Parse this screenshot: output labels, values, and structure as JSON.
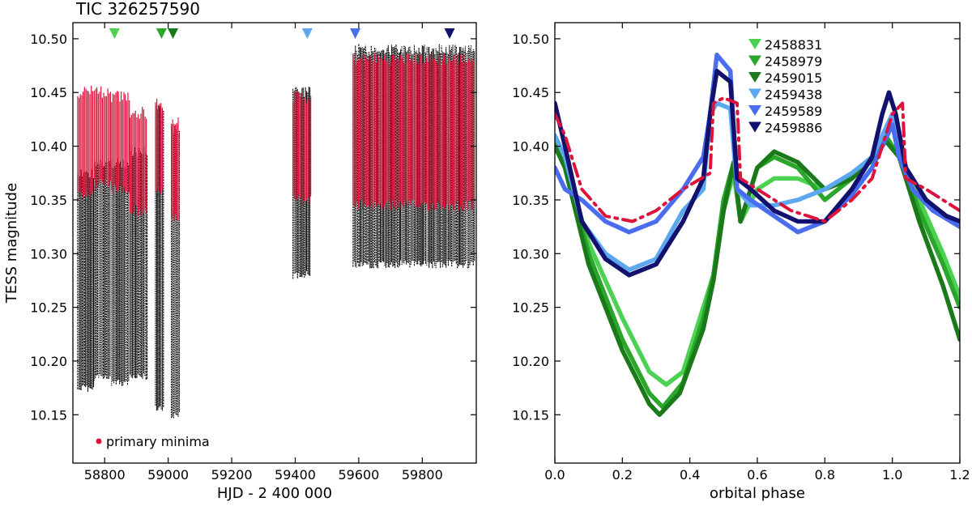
{
  "chart_data": [
    {
      "type": "scatter",
      "title": "TIC 326257590",
      "xlabel": "HJD - 2 400 000",
      "ylabel": "TESS magnitude",
      "xlim": [
        58700,
        59970
      ],
      "ylim": [
        10.515,
        10.105
      ],
      "y_inverted": true,
      "xticks": [
        58800,
        59000,
        59200,
        59400,
        59600,
        59800
      ],
      "yticks": [
        10.15,
        10.2,
        10.25,
        10.3,
        10.35,
        10.4,
        10.45,
        10.5
      ],
      "xtick_labels": [
        "58800",
        "59000",
        "59200",
        "59400",
        "59600",
        "59800"
      ],
      "ytick_labels": [
        "10.15",
        "10.20",
        "10.25",
        "10.30",
        "10.35",
        "10.40",
        "10.45",
        "10.50"
      ],
      "colors": {
        "all_data": "#000000",
        "primary_minima": "#dc143c"
      },
      "legend": {
        "placement": "bottom-left",
        "label": "primary minima"
      },
      "sectors": [
        {
          "x_range": [
            58715,
            58765
          ],
          "y_range": [
            10.175,
            10.375
          ],
          "minima_y_range": [
            10.355,
            10.445
          ]
        },
        {
          "x_range": [
            58767,
            58820
          ],
          "y_range": [
            10.185,
            10.385
          ],
          "minima_y_range": [
            10.365,
            10.445
          ]
        },
        {
          "x_range": [
            58822,
            58878
          ],
          "y_range": [
            10.18,
            10.385
          ],
          "minima_y_range": [
            10.36,
            10.44
          ]
        },
        {
          "x_range": [
            58880,
            58935
          ],
          "y_range": [
            10.185,
            10.395
          ],
          "minima_y_range": [
            10.34,
            10.425
          ]
        },
        {
          "x_range": [
            58960,
            58985
          ],
          "y_range": [
            10.155,
            10.435
          ],
          "minima_y_range": [
            10.355,
            10.435
          ]
        },
        {
          "x_range": [
            59010,
            59035
          ],
          "y_range": [
            10.15,
            10.415
          ],
          "minima_y_range": [
            10.335,
            10.415
          ]
        },
        {
          "x_range": [
            59393,
            59450
          ],
          "y_range": [
            10.28,
            10.45
          ],
          "minima_y_range": [
            10.35,
            10.44
          ]
        },
        {
          "x_range": [
            59582,
            59965
          ],
          "y_range": [
            10.29,
            10.49
          ],
          "minima_y_range": [
            10.345,
            10.475
          ]
        }
      ],
      "epoch_markers": [
        {
          "x": 58831,
          "color": "#4cd152"
        },
        {
          "x": 58979,
          "color": "#2aa62a"
        },
        {
          "x": 59015,
          "color": "#1a7a1a"
        },
        {
          "x": 59438,
          "color": "#5ca8f0"
        },
        {
          "x": 59589,
          "color": "#4a6df0"
        },
        {
          "x": 59886,
          "color": "#12126e"
        }
      ]
    },
    {
      "type": "line",
      "xlabel": "orbital phase",
      "ylabel": "",
      "xlim": [
        0.0,
        1.2
      ],
      "ylim": [
        10.515,
        10.105
      ],
      "y_inverted": true,
      "xticks": [
        0.0,
        0.2,
        0.4,
        0.6,
        0.8,
        1.0,
        1.2
      ],
      "yticks": [
        10.15,
        10.2,
        10.25,
        10.3,
        10.35,
        10.4,
        10.45,
        10.5
      ],
      "xtick_labels": [
        "0.0",
        "0.2",
        "0.4",
        "0.6",
        "0.8",
        "1.0",
        "1.2"
      ],
      "ytick_labels": [
        "10.15",
        "10.20",
        "10.25",
        "10.30",
        "10.35",
        "10.40",
        "10.45",
        "10.50"
      ],
      "legend": {
        "placement": "top-center"
      },
      "series": [
        {
          "name": "2458831",
          "color": "#4cd152",
          "x": [
            0.0,
            0.03,
            0.1,
            0.2,
            0.28,
            0.33,
            0.38,
            0.44,
            0.47,
            0.5,
            0.53,
            0.55,
            0.6,
            0.65,
            0.72,
            0.8,
            0.88,
            0.95,
            0.98,
            1.02,
            1.08,
            1.15,
            1.2
          ],
          "y": [
            10.4,
            10.385,
            10.31,
            10.24,
            10.19,
            10.178,
            10.19,
            10.25,
            10.28,
            10.34,
            10.375,
            10.33,
            10.36,
            10.37,
            10.37,
            10.36,
            10.37,
            10.39,
            10.41,
            10.39,
            10.35,
            10.3,
            10.26
          ]
        },
        {
          "name": "2458979",
          "color": "#2aa62a",
          "x": [
            0.0,
            0.03,
            0.1,
            0.2,
            0.28,
            0.32,
            0.38,
            0.44,
            0.47,
            0.5,
            0.53,
            0.55,
            0.6,
            0.65,
            0.72,
            0.8,
            0.88,
            0.95,
            0.98,
            1.02,
            1.08,
            1.15,
            1.2
          ],
          "y": [
            10.405,
            10.385,
            10.3,
            10.22,
            10.17,
            10.157,
            10.18,
            10.24,
            10.28,
            10.35,
            10.385,
            10.33,
            10.38,
            10.39,
            10.38,
            10.35,
            10.37,
            10.39,
            10.41,
            10.39,
            10.34,
            10.29,
            10.25
          ]
        },
        {
          "name": "2459015",
          "color": "#1a7a1a",
          "x": [
            0.0,
            0.03,
            0.1,
            0.2,
            0.28,
            0.31,
            0.37,
            0.44,
            0.47,
            0.5,
            0.53,
            0.55,
            0.6,
            0.65,
            0.72,
            0.8,
            0.88,
            0.95,
            0.98,
            1.02,
            1.08,
            1.15,
            1.2
          ],
          "y": [
            10.4,
            10.38,
            10.29,
            10.21,
            10.16,
            10.15,
            10.17,
            10.23,
            10.275,
            10.34,
            10.385,
            10.33,
            10.38,
            10.395,
            10.385,
            10.36,
            10.37,
            10.39,
            10.405,
            10.39,
            10.33,
            10.27,
            10.22
          ]
        },
        {
          "name": "2459438",
          "color": "#5ca8f0",
          "x": [
            0.0,
            0.03,
            0.08,
            0.15,
            0.22,
            0.3,
            0.38,
            0.44,
            0.46,
            0.48,
            0.52,
            0.54,
            0.58,
            0.65,
            0.72,
            0.8,
            0.88,
            0.94,
            0.97,
            1.0,
            1.02,
            1.06,
            1.12,
            1.2
          ],
          "y": [
            10.41,
            10.39,
            10.33,
            10.3,
            10.285,
            10.295,
            10.34,
            10.36,
            10.43,
            10.44,
            10.435,
            10.36,
            10.345,
            10.345,
            10.35,
            10.36,
            10.375,
            10.39,
            10.41,
            10.43,
            10.4,
            10.36,
            10.34,
            10.33
          ]
        },
        {
          "name": "2459589",
          "color": "#4a6df0",
          "x": [
            0.0,
            0.03,
            0.08,
            0.15,
            0.22,
            0.3,
            0.38,
            0.44,
            0.46,
            0.48,
            0.52,
            0.54,
            0.58,
            0.65,
            0.72,
            0.8,
            0.88,
            0.94,
            0.97,
            1.0,
            1.02,
            1.06,
            1.12,
            1.2
          ],
          "y": [
            10.38,
            10.36,
            10.35,
            10.33,
            10.32,
            10.33,
            10.36,
            10.39,
            10.43,
            10.485,
            10.47,
            10.36,
            10.35,
            10.335,
            10.32,
            10.33,
            10.355,
            10.38,
            10.4,
            10.42,
            10.39,
            10.36,
            10.34,
            10.325
          ]
        },
        {
          "name": "2459886",
          "color": "#12126e",
          "x": [
            0.0,
            0.03,
            0.08,
            0.15,
            0.22,
            0.3,
            0.38,
            0.44,
            0.46,
            0.48,
            0.52,
            0.54,
            0.58,
            0.65,
            0.72,
            0.8,
            0.88,
            0.94,
            0.97,
            0.99,
            1.01,
            1.04,
            1.1,
            1.16,
            1.2
          ],
          "y": [
            10.44,
            10.4,
            10.33,
            10.295,
            10.28,
            10.29,
            10.33,
            10.37,
            10.43,
            10.47,
            10.46,
            10.37,
            10.36,
            10.34,
            10.33,
            10.33,
            10.36,
            10.39,
            10.43,
            10.45,
            10.43,
            10.38,
            10.35,
            10.335,
            10.33
          ]
        },
        {
          "name": "",
          "color": "#dc143c",
          "style": "dash-dot",
          "x": [
            0.0,
            0.03,
            0.08,
            0.15,
            0.23,
            0.3,
            0.38,
            0.46,
            0.47,
            0.5,
            0.54,
            0.55,
            0.6,
            0.7,
            0.8,
            0.88,
            0.94,
            0.97,
            1.0,
            1.03,
            1.04,
            1.1,
            1.2
          ],
          "y": [
            10.43,
            10.41,
            10.36,
            10.335,
            10.33,
            10.34,
            10.36,
            10.375,
            10.44,
            10.445,
            10.44,
            10.37,
            10.36,
            10.34,
            10.33,
            10.35,
            10.37,
            10.4,
            10.43,
            10.44,
            10.37,
            10.36,
            10.34
          ]
        }
      ]
    }
  ]
}
